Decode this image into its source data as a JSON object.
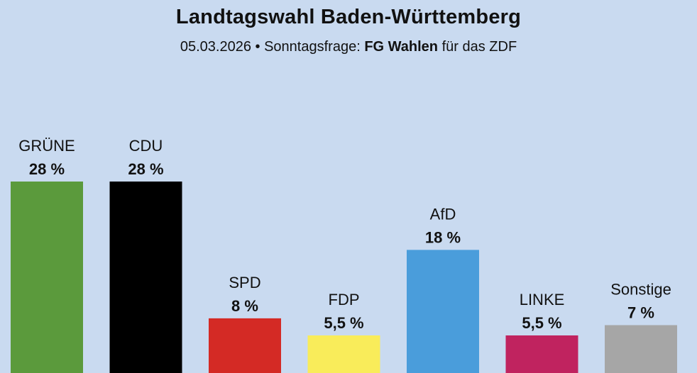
{
  "chart_data": {
    "type": "bar",
    "title": "Landtagswahl Baden-Württemberg",
    "subtitle": {
      "date": "05.03.2026",
      "separator": "•",
      "kind": "Sonntagsfrage:",
      "pollster": "FG Wahlen",
      "client": "für das ZDF"
    },
    "categories": [
      "GRÜNE",
      "CDU",
      "SPD",
      "FDP",
      "AfD",
      "LINKE",
      "Sonstige"
    ],
    "values": [
      28,
      28,
      8,
      5.5,
      18,
      5.5,
      7
    ],
    "value_labels": [
      "28 %",
      "28 %",
      "8 %",
      "5,5 %",
      "18 %",
      "5,5 %",
      "7 %"
    ],
    "colors": [
      "#5b9a3c",
      "#000000",
      "#d42a25",
      "#f9ec5a",
      "#4a9ddb",
      "#c0235f",
      "#a6a6a6"
    ],
    "unit": "%",
    "xlabel": "",
    "ylabel": "",
    "ylim": [
      0,
      28
    ]
  }
}
